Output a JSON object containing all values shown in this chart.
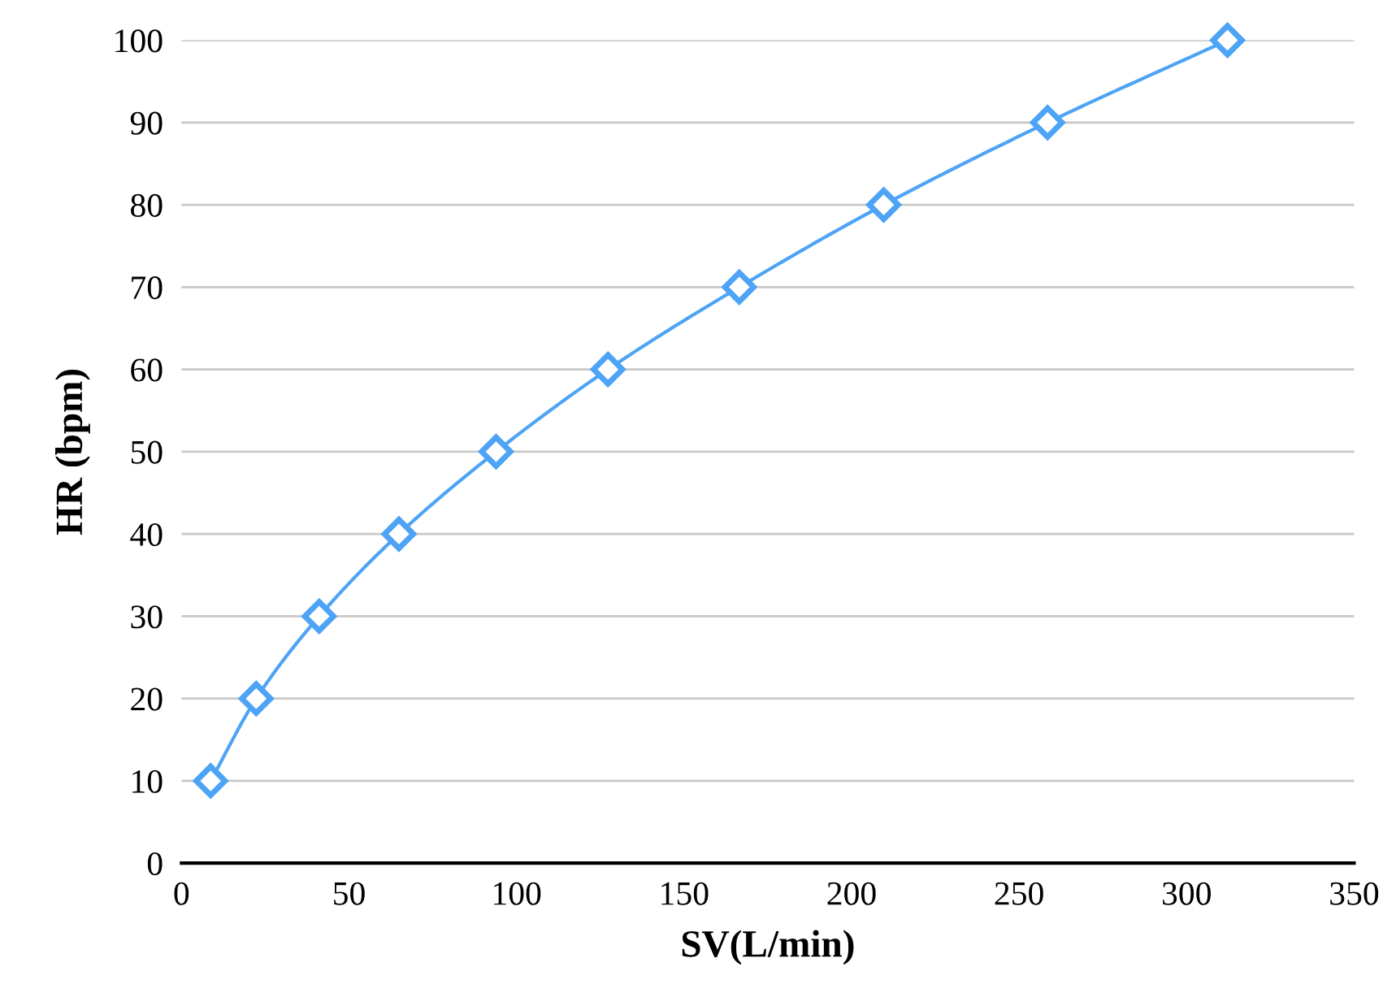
{
  "chart_data": {
    "type": "line",
    "xlabel": "SV(L/min)",
    "ylabel": "HR (bpm)",
    "series": [
      {
        "color": "#4da3f5",
        "x": [
          8.7,
          22.3,
          41.1,
          64.9,
          93.9,
          127.3,
          166.5,
          209.6,
          258.5,
          312.2
        ],
        "values": [
          10,
          20,
          30,
          40,
          50,
          60,
          70,
          80,
          90,
          100
        ]
      }
    ],
    "marker": "diamond",
    "line_style": "solid",
    "xlim": [
      0,
      350
    ],
    "xticks": [
      0,
      50,
      100,
      150,
      200,
      250,
      300,
      350
    ],
    "ylim": [
      0,
      100
    ],
    "yticks": [
      0,
      10,
      20,
      30,
      40,
      50,
      60,
      70,
      80,
      90,
      100
    ],
    "grid": "y",
    "legend": false
  }
}
